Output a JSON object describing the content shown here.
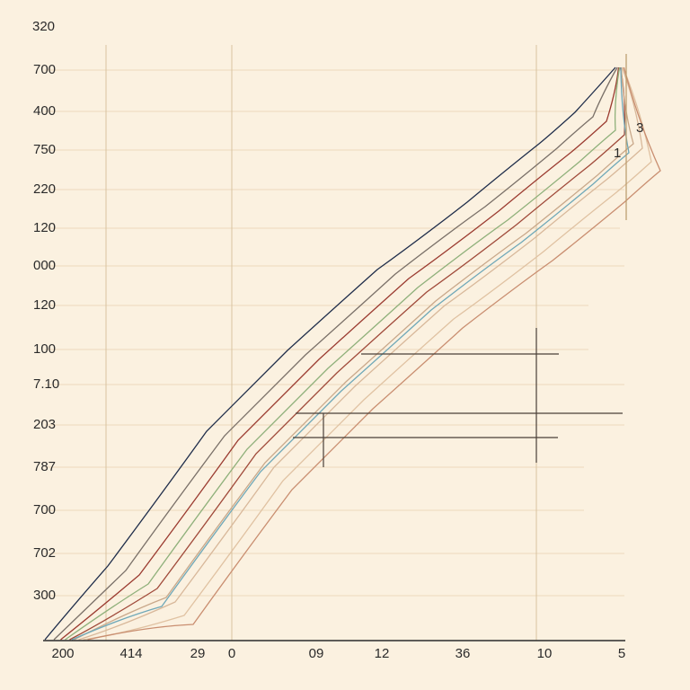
{
  "title": "320",
  "y_labels": [
    "700",
    "400",
    "750",
    "220",
    "120",
    "000",
    "120",
    "100",
    "7.10",
    "203",
    "787",
    "700",
    "702",
    "300"
  ],
  "x_labels": [
    "200",
    "414",
    "29",
    "0",
    "09",
    "12",
    "36",
    "10",
    "5"
  ],
  "side_labels": [
    "3",
    "1"
  ]
}
